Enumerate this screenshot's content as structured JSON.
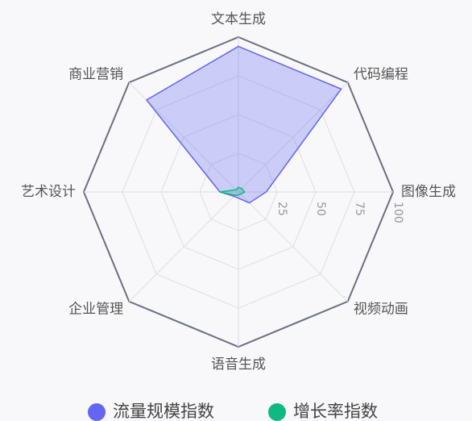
{
  "chart_data": {
    "type": "radar",
    "categories": [
      "文本生成",
      "代码编程",
      "图像生成",
      "视频动画",
      "语音生成",
      "企业管理",
      "艺术设计",
      "商业营销"
    ],
    "series": [
      {
        "name": "流量规模指数",
        "color": "#6366f1",
        "values": [
          94,
          94,
          18,
          10,
          4,
          4,
          12,
          84
        ]
      },
      {
        "name": "增长率指数",
        "color": "#10b981",
        "values": [
          3,
          3,
          4,
          2,
          2,
          3,
          12,
          2
        ]
      }
    ],
    "rlim": [
      0,
      100
    ],
    "rticks": [
      25,
      50,
      75,
      100
    ],
    "legend": "bottom"
  }
}
